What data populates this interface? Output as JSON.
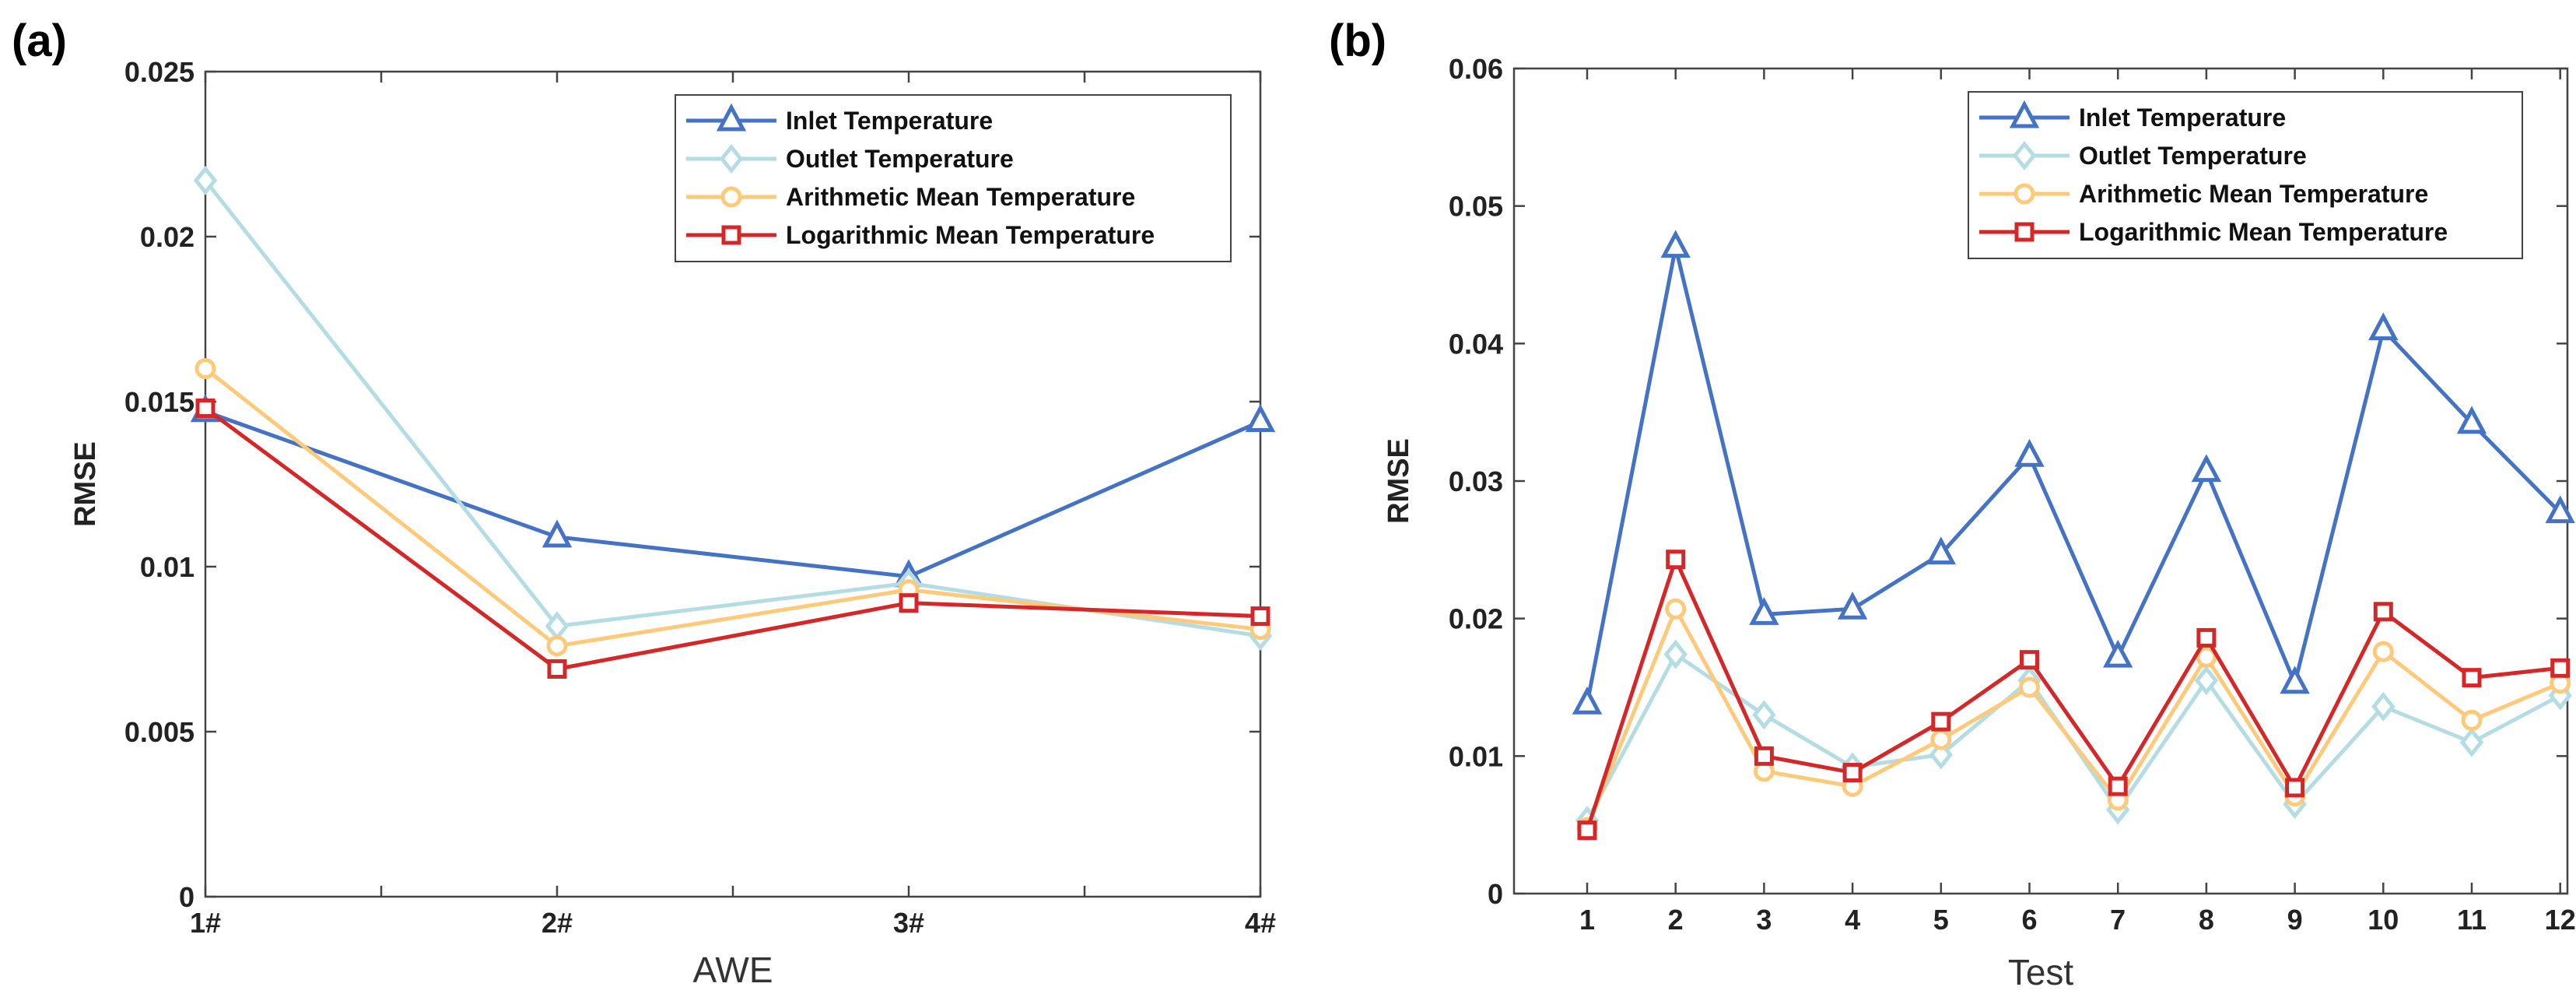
{
  "chart_data": [
    {
      "panel": "(a)",
      "type": "line",
      "xlabel": "AWE",
      "ylabel": "RMSE",
      "categories": [
        "1#",
        "2#",
        "3#",
        "4#"
      ],
      "ylim": [
        0,
        0.025
      ],
      "yticks": [
        "0",
        "0.005",
        "0.01",
        "0.015",
        "0.02",
        "0.025"
      ],
      "legend_position": "top-right",
      "series": [
        {
          "name": "Inlet Temperature",
          "color": "#4472c4",
          "marker": "triangle",
          "values": [
            0.0147,
            0.0109,
            0.0097,
            0.0144
          ]
        },
        {
          "name": "Outlet Temperature",
          "color": "#b4dde3",
          "marker": "diamond",
          "values": [
            0.0217,
            0.0082,
            0.0095,
            0.0079
          ]
        },
        {
          "name": "Arithmetic Mean Temperature",
          "color": "#ffc97a",
          "marker": "circle",
          "values": [
            0.016,
            0.0076,
            0.0093,
            0.0081
          ]
        },
        {
          "name": "Logarithmic Mean Temperature",
          "color": "#d62728",
          "marker": "square",
          "values": [
            0.0148,
            0.0069,
            0.0089,
            0.0085
          ]
        }
      ]
    },
    {
      "panel": "(b)",
      "type": "line",
      "xlabel": "Test",
      "ylabel": "RMSE",
      "categories": [
        "1",
        "2",
        "3",
        "4",
        "5",
        "6",
        "7",
        "8",
        "9",
        "10",
        "11",
        "12"
      ],
      "ylim": [
        0,
        0.06
      ],
      "yticks": [
        "0",
        "0.01",
        "0.02",
        "0.03",
        "0.04",
        "0.05",
        "0.06"
      ],
      "legend_position": "top-right",
      "series": [
        {
          "name": "Inlet Temperature",
          "color": "#4472c4",
          "marker": "triangle",
          "values": [
            0.0138,
            0.047,
            0.0203,
            0.0207,
            0.0247,
            0.0318,
            0.0172,
            0.0307,
            0.0153,
            0.041,
            0.0342,
            0.0277
          ]
        },
        {
          "name": "Outlet Temperature",
          "color": "#b4dde3",
          "marker": "diamond",
          "values": [
            0.0053,
            0.0174,
            0.013,
            0.0092,
            0.0101,
            0.0155,
            0.0061,
            0.0155,
            0.0065,
            0.0136,
            0.011,
            0.0144
          ]
        },
        {
          "name": "Arithmetic Mean Temperature",
          "color": "#ffc97a",
          "marker": "circle",
          "values": [
            0.0048,
            0.0207,
            0.0089,
            0.0078,
            0.0112,
            0.015,
            0.0068,
            0.0172,
            0.0071,
            0.0176,
            0.0126,
            0.0153
          ]
        },
        {
          "name": "Logarithmic Mean Temperature",
          "color": "#d62728",
          "marker": "square",
          "values": [
            0.0046,
            0.0243,
            0.01,
            0.0088,
            0.0125,
            0.017,
            0.0078,
            0.0186,
            0.0077,
            0.0205,
            0.0157,
            0.0164
          ]
        }
      ]
    }
  ]
}
